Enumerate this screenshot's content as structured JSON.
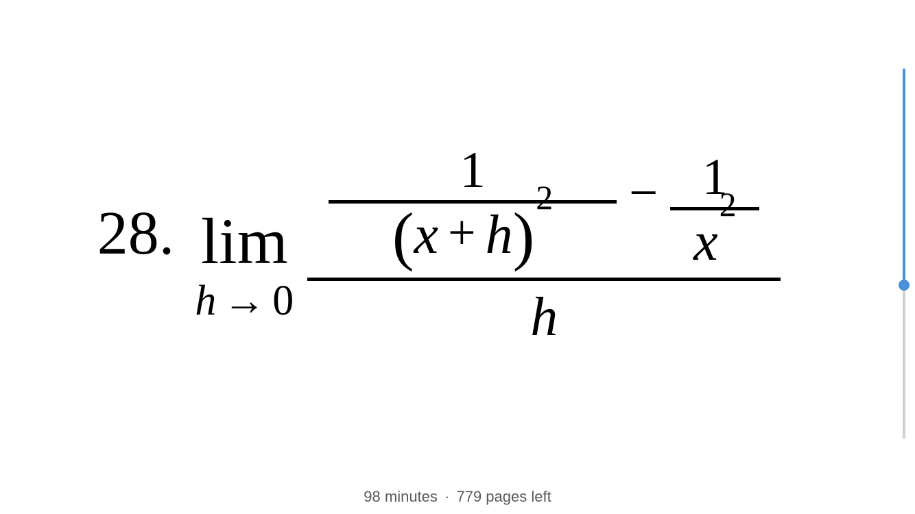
{
  "problem": {
    "number": "28.",
    "limit_symbol": "lim",
    "limit_var": "h",
    "limit_arrow": "→",
    "limit_target": "0",
    "frac1_num": "1",
    "frac1_den_lparen": "(",
    "frac1_den_x": "x",
    "frac1_den_plus": "+",
    "frac1_den_h": "h",
    "frac1_den_rparen": ")",
    "frac1_den_exp": "2",
    "minus": "−",
    "frac2_num": "1",
    "frac2_den_x": "x",
    "frac2_den_exp": "2",
    "outer_den": "h"
  },
  "footer": {
    "time": "98 minutes",
    "separator": "·",
    "pages": "779 pages left"
  },
  "scrollbar": {
    "track_color": "#d0d0d0",
    "active_color": "#4a90d9",
    "thumb_position_pct": 57
  }
}
